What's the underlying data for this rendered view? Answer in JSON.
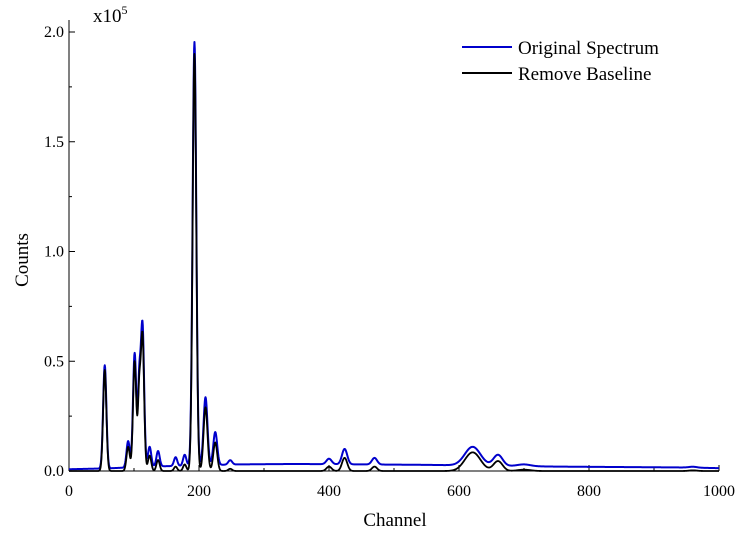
{
  "chart_data": {
    "type": "line",
    "title": "",
    "xlabel": "Channel",
    "ylabel": "Counts",
    "y_multiplier_label": "x10",
    "y_multiplier_exponent": "5",
    "xlim": [
      0,
      1000
    ],
    "ylim": [
      0,
      2.0
    ],
    "x_ticks": [
      0,
      200,
      400,
      600,
      800,
      1000
    ],
    "y_ticks": [
      0.0,
      0.5,
      1.0,
      1.5,
      2.0
    ],
    "y_tick_labels": [
      "0.0",
      "0.5",
      "1.0",
      "1.5",
      "2.0"
    ],
    "grid": false,
    "legend_position": "top-right",
    "series": [
      {
        "name": "Original Spectrum",
        "color": "#0000cc",
        "baseline": [
          [
            0,
            0.008
          ],
          [
            30,
            0.01
          ],
          [
            60,
            0.012
          ],
          [
            90,
            0.016
          ],
          [
            120,
            0.02
          ],
          [
            150,
            0.022
          ],
          [
            180,
            0.024
          ],
          [
            200,
            0.025
          ],
          [
            230,
            0.028
          ],
          [
            260,
            0.03
          ],
          [
            300,
            0.031
          ],
          [
            350,
            0.032
          ],
          [
            400,
            0.031
          ],
          [
            450,
            0.03
          ],
          [
            500,
            0.029
          ],
          [
            550,
            0.028
          ],
          [
            600,
            0.026
          ],
          [
            650,
            0.024
          ],
          [
            700,
            0.022
          ],
          [
            750,
            0.02
          ],
          [
            800,
            0.019
          ],
          [
            850,
            0.018
          ],
          [
            900,
            0.017
          ],
          [
            950,
            0.016
          ],
          [
            1000,
            0.013
          ]
        ],
        "peaks": [
          [
            55,
            0.47,
            2.5
          ],
          [
            91,
            0.12,
            2.5
          ],
          [
            101,
            0.52,
            2.5
          ],
          [
            108,
            0.36,
            2.0
          ],
          [
            113,
            0.65,
            2.5
          ],
          [
            124,
            0.09,
            2.5
          ],
          [
            137,
            0.07,
            2.5
          ],
          [
            164,
            0.04,
            2.5
          ],
          [
            178,
            0.05,
            2.5
          ],
          [
            193,
            1.93,
            2.8
          ],
          [
            210,
            0.31,
            3.0
          ],
          [
            225,
            0.15,
            3.0
          ],
          [
            248,
            0.02,
            3.0
          ],
          [
            400,
            0.025,
            4.0
          ],
          [
            424,
            0.07,
            4.0
          ],
          [
            470,
            0.03,
            4.0
          ],
          [
            621,
            0.085,
            12.0
          ],
          [
            660,
            0.05,
            7.0
          ],
          [
            700,
            0.008,
            10.0
          ],
          [
            960,
            0.004,
            6.0
          ]
        ]
      },
      {
        "name": "Remove Baseline",
        "color": "#000000",
        "baseline": [
          [
            0,
            0.0
          ],
          [
            1000,
            0.0
          ]
        ],
        "peaks": [
          [
            55,
            0.46,
            2.5
          ],
          [
            91,
            0.11,
            2.5
          ],
          [
            101,
            0.5,
            2.5
          ],
          [
            108,
            0.34,
            2.0
          ],
          [
            113,
            0.62,
            2.5
          ],
          [
            124,
            0.07,
            2.5
          ],
          [
            137,
            0.05,
            2.5
          ],
          [
            164,
            0.02,
            2.5
          ],
          [
            178,
            0.03,
            2.5
          ],
          [
            193,
            1.9,
            2.8
          ],
          [
            210,
            0.29,
            3.0
          ],
          [
            225,
            0.13,
            3.0
          ],
          [
            248,
            0.01,
            3.0
          ],
          [
            400,
            0.02,
            4.0
          ],
          [
            424,
            0.06,
            4.0
          ],
          [
            470,
            0.02,
            4.0
          ],
          [
            621,
            0.085,
            12.0
          ],
          [
            660,
            0.045,
            7.0
          ],
          [
            700,
            0.006,
            10.0
          ],
          [
            960,
            0.003,
            6.0
          ]
        ]
      }
    ]
  }
}
